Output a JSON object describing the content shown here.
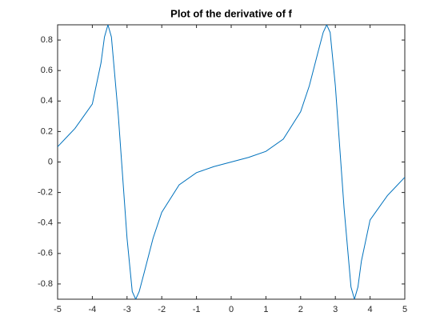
{
  "chart_data": {
    "type": "line",
    "title": "Plot of the derivative of f",
    "x": [
      -5,
      -4.75,
      -4.5,
      -4.25,
      -4,
      -3.75,
      -3.65,
      -3.55,
      -3.45,
      -3.25,
      -3,
      -2.85,
      -2.75,
      -2.65,
      -2.5,
      -2.25,
      -2,
      -1.5,
      -1,
      -0.5,
      0,
      0.5,
      1,
      1.5,
      2,
      2.25,
      2.5,
      2.65,
      2.75,
      2.85,
      3,
      3.25,
      3.45,
      3.55,
      3.65,
      3.75,
      4,
      4.25,
      4.5,
      4.75,
      5
    ],
    "series": [
      {
        "color": "#0072bd",
        "values": [
          0.1,
          0.16,
          0.22,
          0.3,
          0.38,
          0.65,
          0.82,
          0.9,
          0.82,
          0.3,
          -0.5,
          -0.85,
          -0.9,
          -0.85,
          -0.72,
          -0.5,
          -0.33,
          -0.15,
          -0.07,
          -0.03,
          0,
          0.03,
          0.07,
          0.15,
          0.33,
          0.5,
          0.72,
          0.85,
          0.9,
          0.85,
          0.5,
          -0.3,
          -0.82,
          -0.9,
          -0.82,
          -0.65,
          -0.38,
          -0.3,
          -0.22,
          -0.16,
          -0.1
        ]
      }
    ],
    "xlim": [
      -5,
      5
    ],
    "xticks": [
      -5,
      -4,
      -3,
      -2,
      -1,
      0,
      1,
      2,
      3,
      4,
      5
    ],
    "ylim": [
      -0.9,
      0.9
    ],
    "yticks": [
      -0.8,
      -0.6,
      -0.4,
      -0.2,
      0,
      0.2,
      0.4,
      0.6,
      0.8
    ]
  }
}
